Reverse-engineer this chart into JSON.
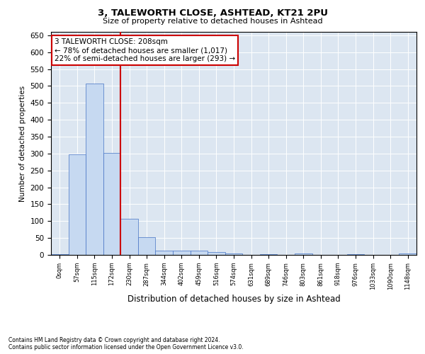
{
  "title_line1": "3, TALEWORTH CLOSE, ASHTEAD, KT21 2PU",
  "title_line2": "Size of property relative to detached houses in Ashtead",
  "xlabel": "Distribution of detached houses by size in Ashtead",
  "ylabel": "Number of detached properties",
  "footnote": "Contains HM Land Registry data © Crown copyright and database right 2024.\nContains public sector information licensed under the Open Government Licence v3.0.",
  "annotation_line1": "3 TALEWORTH CLOSE: 208sqm",
  "annotation_line2": "← 78% of detached houses are smaller (1,017)",
  "annotation_line3": "22% of semi-detached houses are larger (293) →",
  "bar_categories": [
    "0sqm",
    "57sqm",
    "115sqm",
    "172sqm",
    "230sqm",
    "287sqm",
    "344sqm",
    "402sqm",
    "459sqm",
    "516sqm",
    "574sqm",
    "631sqm",
    "689sqm",
    "746sqm",
    "803sqm",
    "861sqm",
    "918sqm",
    "976sqm",
    "1033sqm",
    "1090sqm",
    "1148sqm"
  ],
  "bar_values": [
    3,
    298,
    507,
    301,
    106,
    53,
    13,
    13,
    12,
    8,
    5,
    0,
    2,
    0,
    4,
    0,
    0,
    3,
    0,
    0,
    4
  ],
  "bar_color": "#c6d9f1",
  "bar_edge_color": "#4472c4",
  "vline_x_idx": 3,
  "vline_color": "#cc0000",
  "annotation_box_color": "#cc0000",
  "background_color": "#dce6f1",
  "ylim": [
    0,
    660
  ],
  "yticks": [
    0,
    50,
    100,
    150,
    200,
    250,
    300,
    350,
    400,
    450,
    500,
    550,
    600,
    650
  ]
}
